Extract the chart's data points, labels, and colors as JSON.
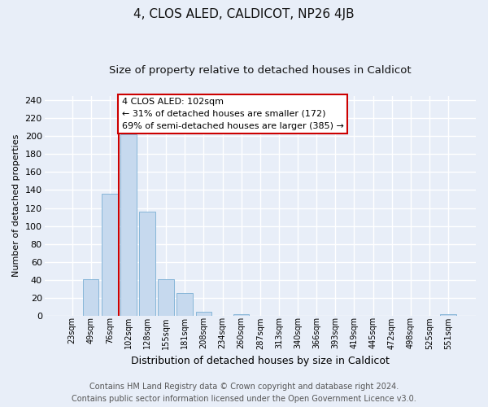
{
  "title": "4, CLOS ALED, CALDICOT, NP26 4JB",
  "subtitle": "Size of property relative to detached houses in Caldicot",
  "xlabel": "Distribution of detached houses by size in Caldicot",
  "ylabel": "Number of detached properties",
  "categories": [
    "23sqm",
    "49sqm",
    "76sqm",
    "102sqm",
    "128sqm",
    "155sqm",
    "181sqm",
    "208sqm",
    "234sqm",
    "260sqm",
    "287sqm",
    "313sqm",
    "340sqm",
    "366sqm",
    "393sqm",
    "419sqm",
    "445sqm",
    "472sqm",
    "498sqm",
    "525sqm",
    "551sqm"
  ],
  "values": [
    0,
    41,
    136,
    202,
    116,
    41,
    25,
    4,
    0,
    2,
    0,
    0,
    0,
    0,
    0,
    0,
    0,
    0,
    0,
    0,
    2
  ],
  "bar_color": "#c6d9ee",
  "bar_edge_color": "#7aafd4",
  "vline_position": 2.5,
  "vline_color": "#cc0000",
  "annotation_line1": "4 CLOS ALED: 102sqm",
  "annotation_line2": "← 31% of detached houses are smaller (172)",
  "annotation_line3": "69% of semi-detached houses are larger (385) →",
  "annotation_box_facecolor": "#ffffff",
  "annotation_box_edgecolor": "#cc0000",
  "ylim": [
    0,
    245
  ],
  "yticks": [
    0,
    20,
    40,
    60,
    80,
    100,
    120,
    140,
    160,
    180,
    200,
    220,
    240
  ],
  "background_color": "#e8eef8",
  "grid_color": "#ffffff",
  "title_fontsize": 11,
  "subtitle_fontsize": 9.5,
  "ylabel_fontsize": 8,
  "xlabel_fontsize": 9,
  "tick_fontsize": 8,
  "xtick_fontsize": 7,
  "footer_line1": "Contains HM Land Registry data © Crown copyright and database right 2024.",
  "footer_line2": "Contains public sector information licensed under the Open Government Licence v3.0.",
  "footer_fontsize": 7
}
